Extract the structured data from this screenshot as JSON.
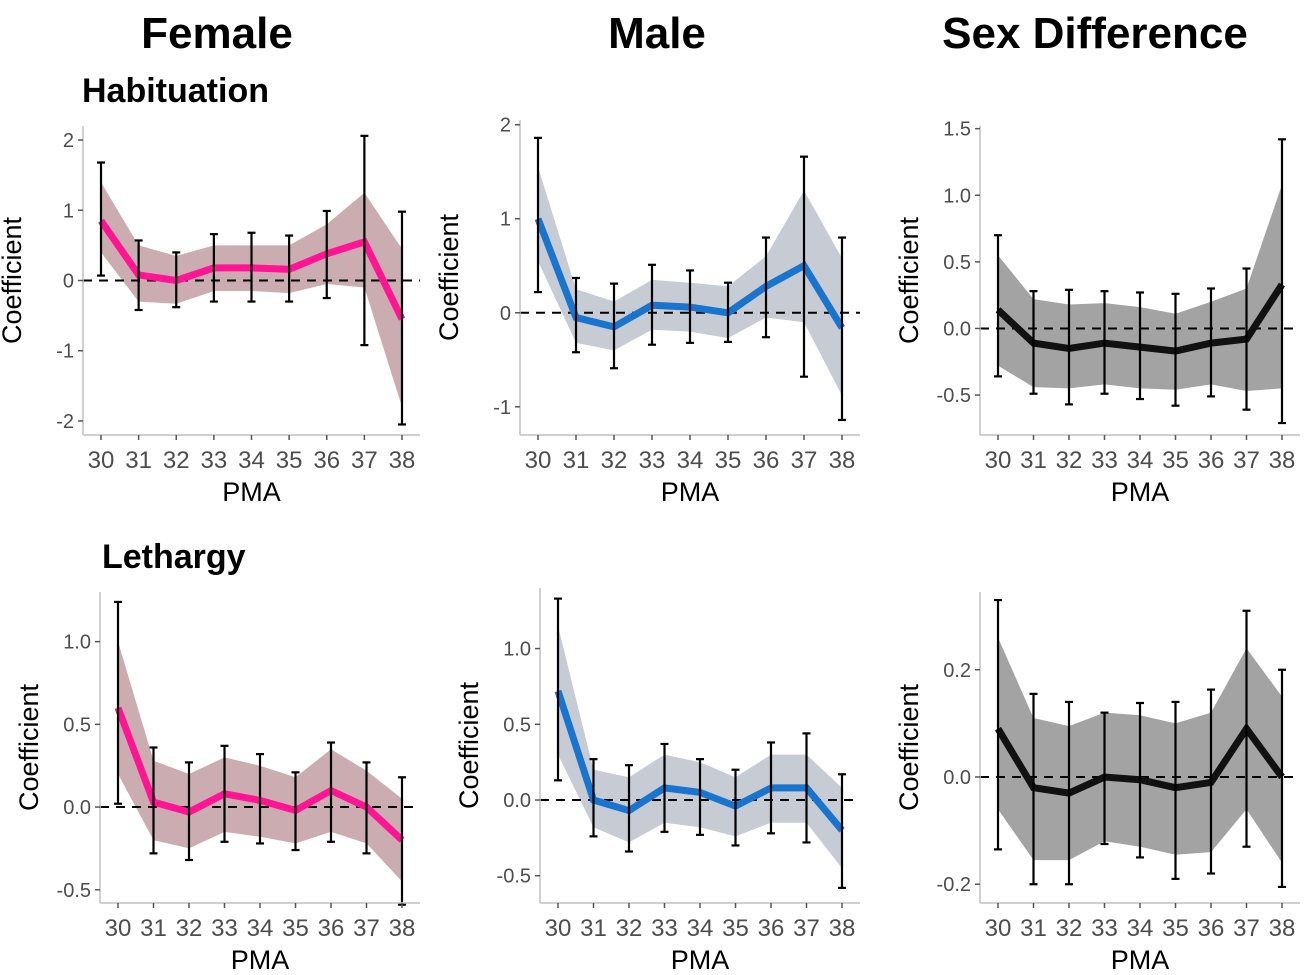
{
  "column_titles": [
    "Female",
    "Male",
    "Sex Difference"
  ],
  "row_titles": [
    "Habituation",
    "Lethargy"
  ],
  "colors": {
    "female_line": "#ff1493",
    "female_band": "#c8a9ad",
    "male_line": "#1874cd",
    "male_band": "#c3c8d2",
    "diff_line": "#111111",
    "diff_band": "#9e9e9e"
  },
  "chart_data": [
    {
      "type": "line",
      "row": "Habituation",
      "column": "Female",
      "xlabel": "PMA",
      "ylabel": "Coefficient",
      "ylim": [
        -2.2,
        2.2
      ],
      "yticks": [
        -2,
        -1,
        0,
        1,
        2
      ],
      "ytick_labels": [
        "-2",
        "-1",
        "0",
        "1",
        "2"
      ],
      "x": [
        30,
        31,
        32,
        33,
        34,
        35,
        36,
        37,
        38
      ],
      "values": [
        0.85,
        0.08,
        0.0,
        0.18,
        0.18,
        0.16,
        0.38,
        0.55,
        -0.55
      ],
      "band_lower": [
        0.4,
        -0.3,
        -0.33,
        -0.15,
        -0.15,
        -0.18,
        -0.05,
        -0.1,
        -1.8
      ],
      "band_upper": [
        1.4,
        0.5,
        0.35,
        0.5,
        0.5,
        0.5,
        0.8,
        1.25,
        0.45
      ],
      "err_lower": [
        0.07,
        -0.42,
        -0.38,
        -0.3,
        -0.3,
        -0.3,
        -0.25,
        -0.92,
        -2.05
      ],
      "err_upper": [
        1.68,
        0.57,
        0.4,
        0.66,
        0.68,
        0.64,
        0.99,
        2.06,
        0.98
      ],
      "grid": false,
      "reference_line": 0
    },
    {
      "type": "line",
      "row": "Habituation",
      "column": "Male",
      "xlabel": "PMA",
      "ylabel": "Coefficient",
      "ylim": [
        -1.3,
        2.05
      ],
      "yticks": [
        -1,
        0,
        1,
        2
      ],
      "ytick_labels": [
        "-1",
        "0",
        "1",
        "2"
      ],
      "x": [
        30,
        31,
        32,
        33,
        34,
        35,
        36,
        37,
        38
      ],
      "values": [
        1.0,
        -0.05,
        -0.15,
        0.08,
        0.06,
        0.0,
        0.28,
        0.5,
        -0.16
      ],
      "band_lower": [
        0.55,
        -0.32,
        -0.4,
        -0.18,
        -0.2,
        -0.27,
        -0.05,
        -0.1,
        -0.88
      ],
      "band_upper": [
        1.55,
        0.25,
        0.12,
        0.35,
        0.32,
        0.28,
        0.6,
        1.3,
        0.58
      ],
      "err_lower": [
        0.22,
        -0.42,
        -0.59,
        -0.34,
        -0.32,
        -0.31,
        -0.26,
        -0.68,
        -1.14
      ],
      "err_upper": [
        1.86,
        0.37,
        0.31,
        0.51,
        0.45,
        0.32,
        0.8,
        1.66,
        0.8
      ],
      "grid": false,
      "reference_line": 0
    },
    {
      "type": "line",
      "row": "Habituation",
      "column": "Sex Difference",
      "xlabel": "PMA",
      "ylabel": "Coefficient",
      "ylim": [
        -0.8,
        1.52
      ],
      "yticks": [
        -0.5,
        0,
        0.5,
        1,
        1.5
      ],
      "ytick_labels": [
        "-0.5",
        "0.0",
        "0.5",
        "1.0",
        "1.5"
      ],
      "x": [
        30,
        31,
        32,
        33,
        34,
        35,
        36,
        37,
        38
      ],
      "values": [
        0.14,
        -0.11,
        -0.15,
        -0.11,
        -0.14,
        -0.17,
        -0.11,
        -0.08,
        0.33
      ],
      "band_lower": [
        -0.28,
        -0.44,
        -0.45,
        -0.42,
        -0.45,
        -0.46,
        -0.42,
        -0.47,
        -0.45
      ],
      "band_upper": [
        0.55,
        0.22,
        0.18,
        0.19,
        0.16,
        0.11,
        0.2,
        0.3,
        1.08
      ],
      "err_lower": [
        -0.36,
        -0.49,
        -0.57,
        -0.49,
        -0.53,
        -0.58,
        -0.51,
        -0.61,
        -0.71
      ],
      "err_upper": [
        0.7,
        0.28,
        0.29,
        0.28,
        0.27,
        0.26,
        0.3,
        0.45,
        1.42
      ],
      "grid": false,
      "reference_line": 0
    },
    {
      "type": "line",
      "row": "Lethargy",
      "column": "Female",
      "xlabel": "PMA",
      "ylabel": "Coefficient",
      "ylim": [
        -0.58,
        1.3
      ],
      "yticks": [
        -0.5,
        0,
        0.5,
        1
      ],
      "ytick_labels": [
        "-0.5",
        "0.0",
        "0.5",
        "1.0"
      ],
      "x": [
        30,
        31,
        32,
        33,
        34,
        35,
        36,
        37,
        38
      ],
      "values": [
        0.6,
        0.03,
        -0.03,
        0.08,
        0.04,
        -0.02,
        0.1,
        0.0,
        -0.2
      ],
      "band_lower": [
        0.2,
        -0.2,
        -0.25,
        -0.15,
        -0.18,
        -0.22,
        -0.15,
        -0.22,
        -0.45
      ],
      "band_upper": [
        1.0,
        0.28,
        0.2,
        0.3,
        0.25,
        0.18,
        0.35,
        0.22,
        0.05
      ],
      "err_lower": [
        0.02,
        -0.28,
        -0.32,
        -0.21,
        -0.22,
        -0.26,
        -0.21,
        -0.28,
        -0.59
      ],
      "err_upper": [
        1.24,
        0.36,
        0.27,
        0.37,
        0.32,
        0.21,
        0.39,
        0.27,
        0.18
      ],
      "grid": false,
      "reference_line": 0
    },
    {
      "type": "line",
      "row": "Lethargy",
      "column": "Male",
      "xlabel": "PMA",
      "ylabel": "Coefficient",
      "ylim": [
        -0.68,
        1.4
      ],
      "yticks": [
        -0.5,
        0,
        0.5,
        1
      ],
      "ytick_labels": [
        "-0.5",
        "0.0",
        "0.5",
        "1.0"
      ],
      "x": [
        30,
        31,
        32,
        33,
        34,
        35,
        36,
        37,
        38
      ],
      "values": [
        0.72,
        0.0,
        -0.07,
        0.08,
        0.05,
        -0.04,
        0.08,
        0.08,
        -0.2
      ],
      "band_lower": [
        0.3,
        -0.18,
        -0.28,
        -0.15,
        -0.18,
        -0.24,
        -0.15,
        -0.15,
        -0.45
      ],
      "band_upper": [
        1.15,
        0.2,
        0.15,
        0.3,
        0.25,
        0.15,
        0.3,
        0.3,
        0.08
      ],
      "err_lower": [
        0.13,
        -0.24,
        -0.34,
        -0.21,
        -0.23,
        -0.3,
        -0.22,
        -0.28,
        -0.58
      ],
      "err_upper": [
        1.33,
        0.27,
        0.23,
        0.37,
        0.27,
        0.2,
        0.38,
        0.44,
        0.17
      ],
      "grid": false,
      "reference_line": 0
    },
    {
      "type": "line",
      "row": "Lethargy",
      "column": "Sex Difference",
      "xlabel": "PMA",
      "ylabel": "Coefficient",
      "ylim": [
        -0.235,
        0.345
      ],
      "yticks": [
        -0.2,
        0,
        0.2
      ],
      "ytick_labels": [
        "-0.2",
        "0.0",
        "0.2"
      ],
      "x": [
        30,
        31,
        32,
        33,
        34,
        35,
        36,
        37,
        38
      ],
      "values": [
        0.09,
        -0.02,
        -0.03,
        0.0,
        -0.005,
        -0.02,
        -0.01,
        0.09,
        0.0
      ],
      "band_lower": [
        -0.06,
        -0.155,
        -0.155,
        -0.12,
        -0.13,
        -0.145,
        -0.14,
        -0.06,
        -0.16
      ],
      "band_upper": [
        0.26,
        0.11,
        0.095,
        0.12,
        0.115,
        0.1,
        0.12,
        0.24,
        0.15
      ],
      "err_lower": [
        -0.135,
        -0.2,
        -0.2,
        -0.125,
        -0.15,
        -0.19,
        -0.18,
        -0.13,
        -0.205
      ],
      "err_upper": [
        0.33,
        0.155,
        0.14,
        0.12,
        0.138,
        0.14,
        0.163,
        0.31,
        0.2
      ],
      "grid": false,
      "reference_line": 0
    }
  ]
}
